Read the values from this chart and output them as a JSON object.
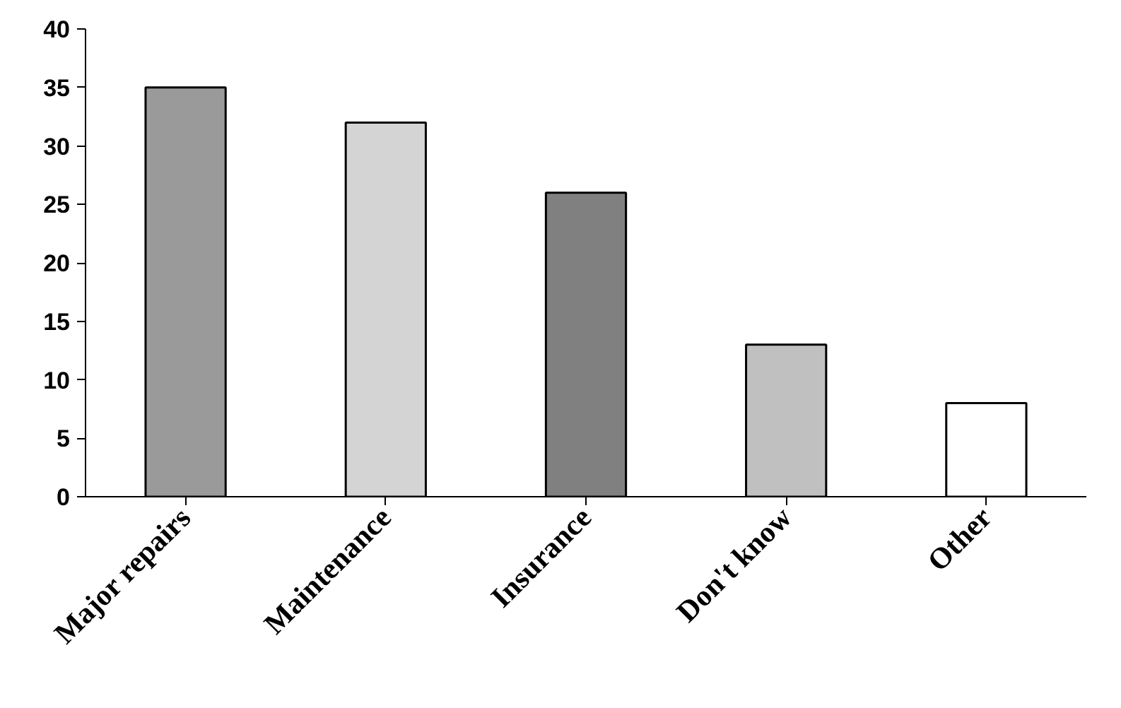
{
  "chart_data": {
    "type": "bar",
    "categories": [
      "Major repairs",
      "Maintenance",
      "Insurance",
      "Don't know",
      "Other"
    ],
    "values": [
      35,
      32,
      26,
      13,
      8
    ],
    "colors": [
      "#9a9a9a",
      "#d4d4d4",
      "#808080",
      "#c0c0c0",
      "#ffffff"
    ],
    "ylim": [
      0,
      40
    ],
    "yticks": [
      0,
      5,
      10,
      15,
      20,
      25,
      30,
      35,
      40
    ],
    "grid": false
  }
}
